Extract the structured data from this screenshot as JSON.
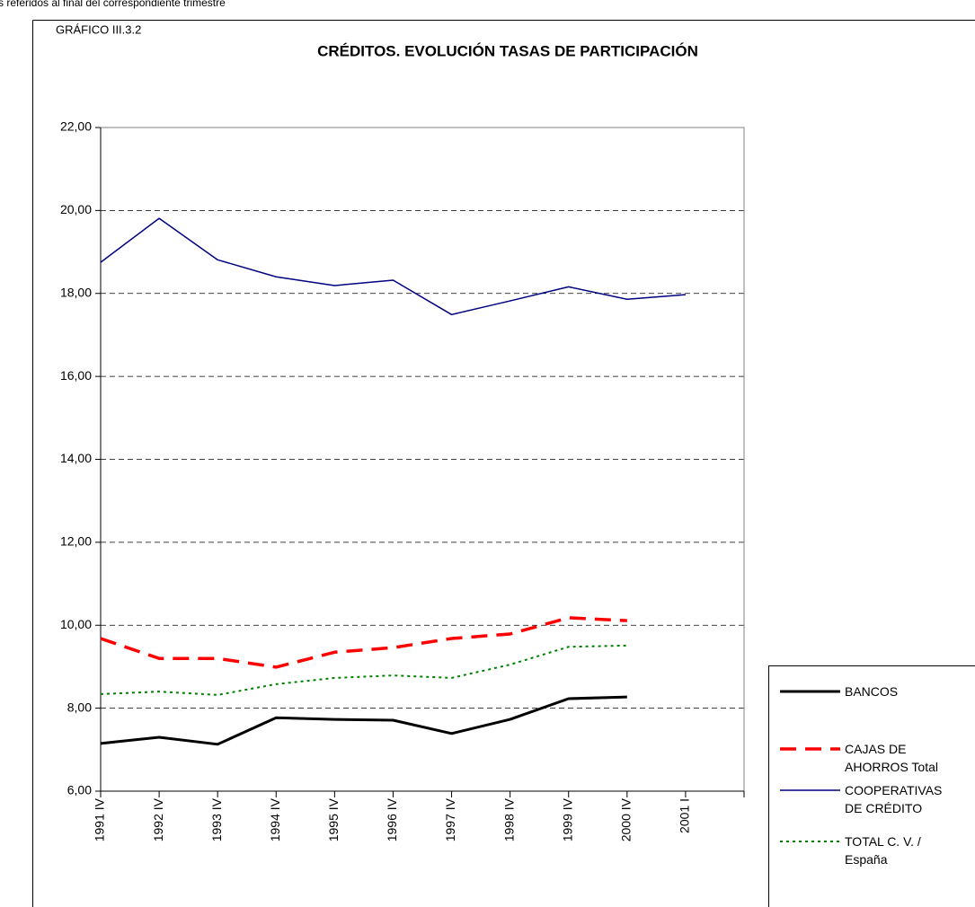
{
  "note": "s referidos al final del correspondiente trimestre",
  "chart_data": {
    "type": "line",
    "label": "GRÁFICO III.3.2",
    "title": "CRÉDITOS. EVOLUCIÓN TASAS DE PARTICIPACIÓN",
    "categories": [
      "1991 IV",
      "1992 IV",
      "1993 IV",
      "1994 IV",
      "1995 IV",
      "1996 IV",
      "1997 IV",
      "1998 IV",
      "1999 IV",
      "2000 IV",
      "2001 I",
      null
    ],
    "ylim": [
      6,
      22
    ],
    "yticks": [
      {
        "value": 6,
        "label": "6,00"
      },
      {
        "value": 8,
        "label": "8,00"
      },
      {
        "value": 10,
        "label": "10,00"
      },
      {
        "value": 12,
        "label": "12,00"
      },
      {
        "value": 14,
        "label": "14,00"
      },
      {
        "value": 16,
        "label": "16,00"
      },
      {
        "value": 18,
        "label": "18,00"
      },
      {
        "value": 20,
        "label": "20,00"
      },
      {
        "value": 22,
        "label": "22,00"
      }
    ],
    "grid": true,
    "legend": "right",
    "series": [
      {
        "name": "BANCOS",
        "color": "#000000",
        "values": [
          7.15,
          7.3,
          7.13,
          7.77,
          7.73,
          7.71,
          7.39,
          7.73,
          8.23,
          8.27,
          null,
          null
        ]
      },
      {
        "name": "CAJAS DE AHORROS Total",
        "color": "#ff0000",
        "values": [
          9.68,
          9.2,
          9.2,
          8.99,
          9.35,
          9.46,
          9.68,
          9.79,
          10.18,
          10.11,
          null,
          null
        ]
      },
      {
        "name": "COOPERATIVAS DE CRÉDITO",
        "color": "#000080",
        "values": [
          18.75,
          19.81,
          18.81,
          18.4,
          18.19,
          18.32,
          17.49,
          17.82,
          18.16,
          17.86,
          17.97,
          null
        ]
      },
      {
        "name": "TOTAL  C. V. / España",
        "color": "#008000",
        "values": [
          8.34,
          8.4,
          8.32,
          8.58,
          8.73,
          8.79,
          8.73,
          9.05,
          9.48,
          9.51,
          null,
          null
        ]
      }
    ]
  }
}
